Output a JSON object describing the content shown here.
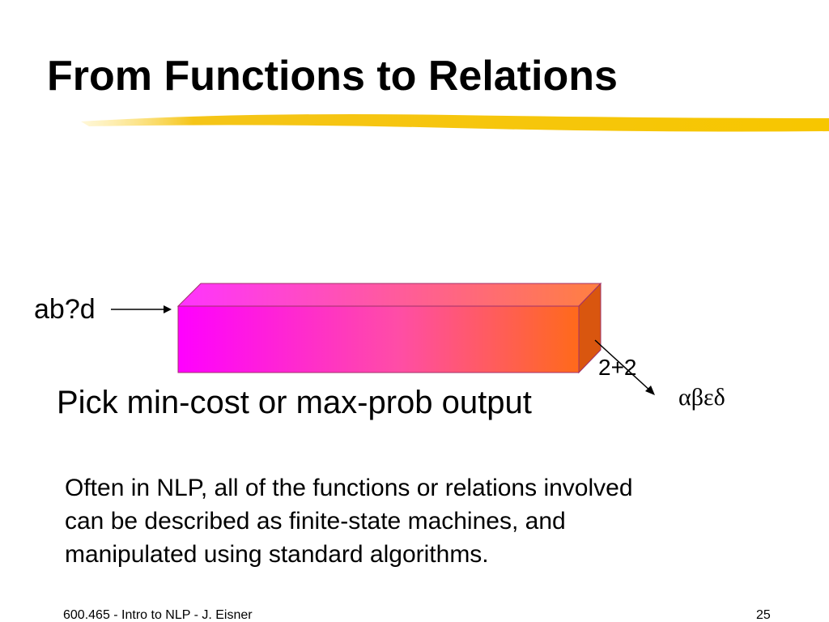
{
  "header": {
    "title": "From Functions to Relations"
  },
  "diagram": {
    "input": "ab?d",
    "outputs": [
      "2+2",
      "αβεδ"
    ],
    "caption": "Pick min-cost or max-prob output"
  },
  "body": {
    "lines": [
      "Often in NLP, all of the functions or relations involved",
      "can be described as finite-state machines, and",
      "manipulated using standard algorithms."
    ]
  },
  "footer": {
    "source": "600.465 - Intro to NLP - J. Eisner",
    "page": "25"
  }
}
